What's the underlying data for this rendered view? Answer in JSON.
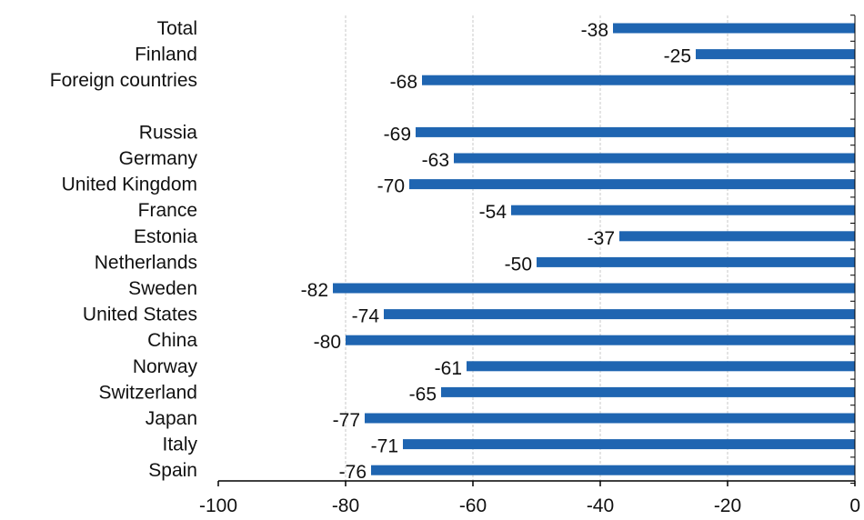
{
  "chart_data": {
    "type": "bar",
    "orientation": "horizontal",
    "title": "",
    "xlabel": "",
    "ylabel": "",
    "xlim": [
      -100,
      0
    ],
    "x_ticks": [
      -100,
      -80,
      -60,
      -40,
      -20,
      0
    ],
    "grid": "vertical-dashed",
    "legend": "none",
    "categories": [
      "Total",
      "Finland",
      "Foreign countries",
      "",
      "Russia",
      "Germany",
      "United Kingdom",
      "France",
      "Estonia",
      "Netherlands",
      "Sweden",
      "United States",
      "China",
      "Norway",
      "Switzerland",
      "Japan",
      "Italy",
      "Spain"
    ],
    "values": [
      -38,
      -25,
      -68,
      null,
      -69,
      -63,
      -70,
      -54,
      -37,
      -50,
      -82,
      -74,
      -80,
      -61,
      -65,
      -77,
      -71,
      -76
    ],
    "colors": {
      "bar": "#1f65b1",
      "grid": "#c8c8c8",
      "axis": "#000000"
    }
  }
}
